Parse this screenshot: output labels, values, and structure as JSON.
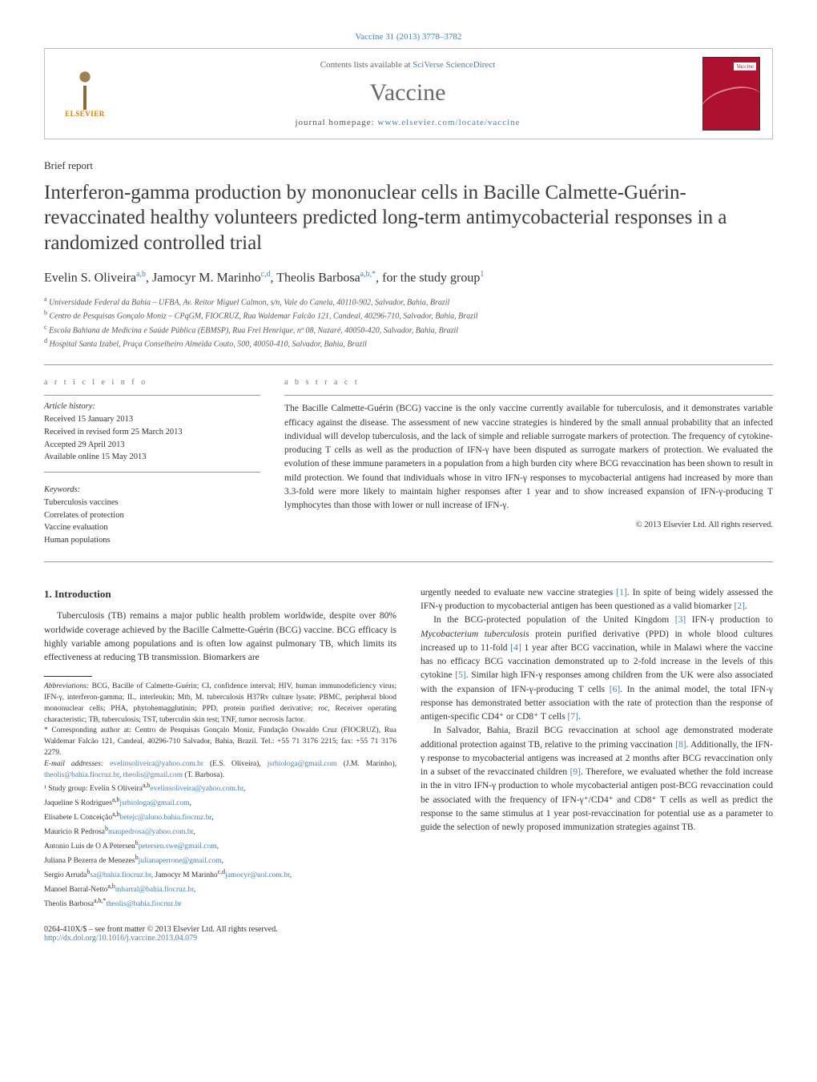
{
  "journal_ref": "Vaccine 31 (2013) 3778–3782",
  "contents_line_pre": "Contents lists available at ",
  "contents_line_link": "SciVerse ScienceDirect",
  "journal_name": "Vaccine",
  "homepage_pre": "journal homepage: ",
  "homepage_link": "www.elsevier.com/locate/vaccine",
  "elsevier": "ELSEVIER",
  "cover_label": "Vaccine",
  "section_label": "Brief report",
  "title": "Interferon-gamma production by mononuclear cells in Bacille Calmette-Guérin-revaccinated healthy volunteers predicted long-term antimycobacterial responses in a randomized controlled trial",
  "authors_html": "Evelin S. Oliveira<span class='sup'>a,b</span>, Jamocyr M. Marinho<span class='sup'>c,d</span>, Theolis Barbosa<span class='sup'>a,b,*</span>, for the study group<span class='sup'>1</span>",
  "affiliations": {
    "a": "Universidade Federal da Bahia – UFBA, Av. Reitor Miguel Calmon, s/n, Vale do Canela, 40110-902, Salvador, Bahia, Brazil",
    "b": "Centro de Pesquisas Gonçalo Moniz – CPqGM, FIOCRUZ, Rua Waldemar Falcão 121, Candeal, 40296-710, Salvador, Bahia, Brazil",
    "c": "Escola Bahiana de Medicina e Saúde Pública (EBMSP), Rua Frei Henrique, nº 08, Nazaré, 40050-420, Salvador, Bahia, Brazil",
    "d": "Hospital Santa Izabel, Praça Conselheiro Almeida Couto, 500, 40050-410, Salvador, Bahia, Brazil"
  },
  "article_info_head": "a r t i c l e   i n f o",
  "abstract_head": "a b s t r a c t",
  "history_head": "Article history:",
  "history": {
    "received": "Received 15 January 2013",
    "revised": "Received in revised form 25 March 2013",
    "accepted": "Accepted 29 April 2013",
    "online": "Available online 15 May 2013"
  },
  "keywords_head": "Keywords:",
  "keywords": [
    "Tuberculosis vaccines",
    "Correlates of protection",
    "Vaccine evaluation",
    "Human populations"
  ],
  "abstract_text": "The Bacille Calmette-Guérin (BCG) vaccine is the only vaccine currently available for tuberculosis, and it demonstrates variable efficacy against the disease. The assessment of new vaccine strategies is hindered by the small annual probability that an infected individual will develop tuberculosis, and the lack of simple and reliable surrogate markers of protection. The frequency of cytokine-producing T cells as well as the production of IFN-γ have been disputed as surrogate markers of protection. We evaluated the evolution of these immune parameters in a population from a high burden city where BCG revaccination has been shown to result in mild protection. We found that individuals whose in vitro IFN-γ responses to mycobacterial antigens had increased by more than 3.3-fold were more likely to maintain higher responses after 1 year and to show increased expansion of IFN-γ-producing T lymphocytes than those with lower or null increase of IFN-γ.",
  "copyright_line": "© 2013 Elsevier Ltd. All rights reserved.",
  "intro_head": "1.  Introduction",
  "intro_p1": "Tuberculosis (TB) remains a major public health problem worldwide, despite over 80% worldwide coverage achieved by the Bacille Calmette-Guérin (BCG) vaccine. BCG efficacy is highly variable among populations and is often low against pulmonary TB, which limits its effectiveness at reducing TB transmission. Biomarkers are",
  "abbrev_head": "Abbreviations:",
  "abbrev_text": " BCG, Bacille of Calmette-Guérin; CI, confidence interval; HIV, human immunodeficiency virus; IFN-γ, interferon-gamma; IL, interleukin; Mtb, M. tuberculosis H37Rv culture lysate; PBMC, peripheral blood mononuclear cells; PHA, phytohemagglutinin; PPD, protein purified derivative; roc, Receiver operating characteristic; TB, tuberculosis; TST, tuberculin skin test; TNF, tumor necrosis factor.",
  "corr_text": "* Corresponding author at: Centro de Pesquisas Gonçalo Moniz, Fundação Oswaldo Cruz (FIOCRUZ), Rua Waldemar Falcão 121, Candeal, 40296-710 Salvador, Bahia, Brazil. Tel.: +55 71 3176 2215; fax: +55 71 3176 2279.",
  "email_head": "E-mail addresses:",
  "emails": {
    "e1": "evelinsoliveira@yahoo.com.br",
    "e1_who": " (E.S. Oliveira), ",
    "e2": "jsrbiologa@gmail.com",
    "e2_who": " (J.M. Marinho), ",
    "e3": "theolis@bahia.fiocruz.br",
    "e3_sep": ", ",
    "e4": "theolis@gmail.com",
    "e4_who": " (T. Barbosa)."
  },
  "study_group_head": "¹ Study group: Evelin S Oliveira",
  "study_group": {
    "l1a": "a,b",
    "l1_email": "evelinsoliveira@yahoo.com.br",
    "l1_post": ",",
    "l2_name": "Jaqueline S Rodrigues",
    "l2a": "a,b",
    "l2_email": "jsrbiologa@gmail.com",
    "l2_post": ",",
    "l3_name": "Elisabete L Conceição",
    "l3a": "a,b",
    "l3_email": "betejc@aluno.bahia.fiocruz.br",
    "l3_post": ",",
    "l4_name": "Mauricio R Pedrosa",
    "l4a": "b",
    "l4_email": "maupedrosa@yahoo.com.br",
    "l4_post": ",",
    "l5_name": "Antonio Luis de O A Petersen",
    "l5a": "b",
    "l5_email": "petersen.swe@gmail.com",
    "l5_post": ",",
    "l6_name": "Juliana P Bezerra de Menezes",
    "l6a": "b",
    "l6_email": "julianaperrone@gmail.com",
    "l6_post": ",",
    "l7_name": "Sergio Arruda",
    "l7a": "b",
    "l7_email": "sa@bahia.fiocruz.br",
    "l7_post": ", Jamocyr M Marinho",
    "l7a2": "c,d",
    "l7_email2": "jamocyr@uol.com.br",
    "l7_post2": ",",
    "l8_name": "Manoel Barral-Netto",
    "l8a": "a,b",
    "l8_email": "mbarral@bahia.fiocruz.br",
    "l8_post": ",",
    "l9_name": "Theolis Barbosa",
    "l9a": "a,b,*",
    "l9_email": "theolis@bahia.fiocruz.br"
  },
  "right_p1_pre": "urgently needed to evaluate new vaccine strategies ",
  "right_p1_ref1": "[1]",
  "right_p1_mid": ". In spite of being widely assessed the IFN-γ production to mycobacterial antigen has been questioned as a valid biomarker ",
  "right_p1_ref2": "[2]",
  "right_p1_post": ".",
  "right_p2": "In the BCG-protected population of the United Kingdom [3] IFN-γ production to Mycobacterium tuberculosis protein purified derivative (PPD) in whole blood cultures increased up to 11-fold [4] 1 year after BCG vaccination, while in Malawi where the vaccine has no efficacy BCG vaccination demonstrated up to 2-fold increase in the levels of this cytokine [5]. Similar high IFN-γ responses among children from the UK were also associated with the expansion of IFN-γ-producing T cells [6]. In the animal model, the total IFN-γ response has demonstrated better association with the rate of protection than the response of antigen-specific CD4⁺ or CD8⁺ T cells [7].",
  "right_p3": "In Salvador, Bahia, Brazil BCG revaccination at school age demonstrated moderate additional protection against TB, relative to the priming vaccination [8]. Additionally, the IFN-γ response to mycobacterial antigens was increased at 2 months after BCG revaccination only in a subset of the revaccinated children [9]. Therefore, we evaluated whether the fold increase in the in vitro IFN-γ production to whole mycobacterial antigen post-BCG revaccination could be associated with the frequency of IFN-γ⁺/CD4⁺ and CD8⁺ T cells as well as predict the response to the same stimulus at 1 year post-revaccination for potential use as a parameter to guide the selection of newly proposed immunization strategies against TB.",
  "bottom": {
    "l1": "0264-410X/$ – see front matter © 2013 Elsevier Ltd. All rights reserved.",
    "doi": "http://dx.doi.org/10.1016/j.vaccine.2013.04.079"
  },
  "colors": {
    "link": "#4a7fb0",
    "text": "#333333",
    "cover": "#b01030",
    "elsevier_orange": "#e67a00"
  }
}
